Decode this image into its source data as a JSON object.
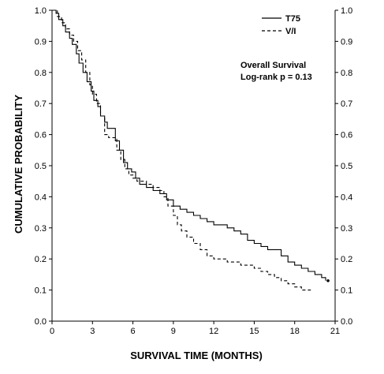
{
  "chart_data": {
    "type": "line",
    "step": true,
    "xlabel": "SURVIVAL TIME (MONTHS)",
    "ylabel": "CUMULATIVE PROBABILITY",
    "xlim": [
      0,
      21
    ],
    "ylim": [
      0,
      1
    ],
    "x_ticks": [
      0,
      3,
      6,
      9,
      12,
      15,
      18,
      21
    ],
    "y_ticks": [
      0.0,
      0.1,
      0.2,
      0.3,
      0.4,
      0.5,
      0.6,
      0.7,
      0.8,
      0.9,
      1.0
    ],
    "y_tick_labels": [
      "0.0",
      "0.1",
      "0.2",
      "0.3",
      "0.4",
      "0.5",
      "0.6",
      "0.7",
      "0.8",
      "0.9",
      "1.0"
    ],
    "right_axis_mirrored": true,
    "grid": false,
    "legend_position": "top-right",
    "annotations": [
      "Overall Survival",
      "Log-rank  p = 0.13"
    ],
    "series": [
      {
        "name": "T75",
        "style": "solid",
        "color": "#000000",
        "points": [
          [
            0,
            1.0
          ],
          [
            0.3,
            0.99
          ],
          [
            0.5,
            0.97
          ],
          [
            0.8,
            0.95
          ],
          [
            1.0,
            0.93
          ],
          [
            1.3,
            0.91
          ],
          [
            1.5,
            0.89
          ],
          [
            1.8,
            0.86
          ],
          [
            2.0,
            0.83
          ],
          [
            2.3,
            0.8
          ],
          [
            2.6,
            0.77
          ],
          [
            2.9,
            0.74
          ],
          [
            3.1,
            0.71
          ],
          [
            3.4,
            0.69
          ],
          [
            3.6,
            0.66
          ],
          [
            3.9,
            0.64
          ],
          [
            4.1,
            0.62
          ],
          [
            4.4,
            0.62
          ],
          [
            4.7,
            0.58
          ],
          [
            5.0,
            0.55
          ],
          [
            5.3,
            0.51
          ],
          [
            5.6,
            0.49
          ],
          [
            5.9,
            0.48
          ],
          [
            6.2,
            0.46
          ],
          [
            6.5,
            0.44
          ],
          [
            7.0,
            0.43
          ],
          [
            7.5,
            0.42
          ],
          [
            8.0,
            0.41
          ],
          [
            8.5,
            0.39
          ],
          [
            9.0,
            0.37
          ],
          [
            9.5,
            0.36
          ],
          [
            10.0,
            0.35
          ],
          [
            10.5,
            0.34
          ],
          [
            11.0,
            0.33
          ],
          [
            11.5,
            0.32
          ],
          [
            12.0,
            0.31
          ],
          [
            13.0,
            0.3
          ],
          [
            13.5,
            0.29
          ],
          [
            14.0,
            0.28
          ],
          [
            14.5,
            0.26
          ],
          [
            15.0,
            0.25
          ],
          [
            15.5,
            0.24
          ],
          [
            16.0,
            0.23
          ],
          [
            17.0,
            0.21
          ],
          [
            17.5,
            0.19
          ],
          [
            18.0,
            0.18
          ],
          [
            18.5,
            0.17
          ],
          [
            19.0,
            0.16
          ],
          [
            19.5,
            0.15
          ],
          [
            20.0,
            0.14
          ],
          [
            20.3,
            0.13
          ]
        ]
      },
      {
        "name": "V/I",
        "style": "dashed",
        "color": "#000000",
        "points": [
          [
            0,
            1.0
          ],
          [
            0.4,
            0.98
          ],
          [
            0.7,
            0.96
          ],
          [
            1.0,
            0.94
          ],
          [
            1.3,
            0.92
          ],
          [
            1.6,
            0.9
          ],
          [
            1.9,
            0.87
          ],
          [
            2.2,
            0.84
          ],
          [
            2.5,
            0.8
          ],
          [
            2.8,
            0.76
          ],
          [
            3.0,
            0.73
          ],
          [
            3.3,
            0.7
          ],
          [
            3.6,
            0.66
          ],
          [
            3.9,
            0.6
          ],
          [
            4.2,
            0.59
          ],
          [
            4.5,
            0.59
          ],
          [
            4.8,
            0.55
          ],
          [
            5.1,
            0.52
          ],
          [
            5.4,
            0.49
          ],
          [
            5.7,
            0.47
          ],
          [
            6.0,
            0.46
          ],
          [
            6.3,
            0.45
          ],
          [
            7.0,
            0.44
          ],
          [
            7.5,
            0.43
          ],
          [
            8.0,
            0.42
          ],
          [
            8.3,
            0.4
          ],
          [
            8.6,
            0.37
          ],
          [
            9.0,
            0.34
          ],
          [
            9.3,
            0.31
          ],
          [
            9.6,
            0.29
          ],
          [
            10.0,
            0.27
          ],
          [
            10.5,
            0.25
          ],
          [
            11.0,
            0.23
          ],
          [
            11.5,
            0.21
          ],
          [
            12.0,
            0.2
          ],
          [
            13.0,
            0.19
          ],
          [
            14.0,
            0.18
          ],
          [
            15.0,
            0.17
          ],
          [
            15.5,
            0.16
          ],
          [
            16.0,
            0.15
          ],
          [
            16.5,
            0.14
          ],
          [
            17.0,
            0.13
          ],
          [
            17.5,
            0.12
          ],
          [
            18.0,
            0.11
          ],
          [
            18.5,
            0.1
          ],
          [
            19.2,
            0.1
          ]
        ]
      }
    ]
  }
}
